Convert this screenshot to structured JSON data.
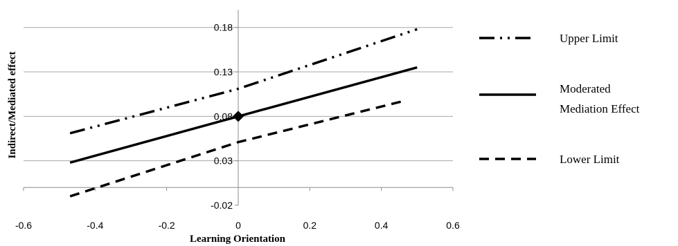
{
  "chart_data": {
    "type": "line",
    "xlabel": "Learning Orientation",
    "ylabel": "Indirect/Mediated effect",
    "xlim": [
      -0.6,
      0.6
    ],
    "ylim": [
      -0.02,
      0.2
    ],
    "x_ticks": [
      "-0.6",
      "-0.4",
      "-0.2",
      "0",
      "0.2",
      "0.4",
      "0.6"
    ],
    "y_ticks": [
      "-0.02",
      "0.03",
      "0.08",
      "0.13",
      "0.18"
    ],
    "grid": "horizontal",
    "legend_position": "right",
    "series": [
      {
        "name": "Upper Limit",
        "style": "dash-dot-dot",
        "x": [
          -0.47,
          0.0,
          0.5
        ],
        "y": [
          0.061,
          0.111,
          0.178
        ]
      },
      {
        "name": "Moderated Mediation Effect",
        "name_lines": [
          "Moderated",
          "Mediation Effect"
        ],
        "style": "solid",
        "x": [
          -0.47,
          0.0,
          0.5
        ],
        "y": [
          0.028,
          0.08,
          0.135
        ]
      },
      {
        "name": "Lower Limit",
        "style": "dashed",
        "x": [
          -0.47,
          0.0,
          0.47
        ],
        "y": [
          -0.01,
          0.051,
          0.098
        ]
      }
    ],
    "marker": {
      "x": 0.0,
      "y": 0.08,
      "shape": "diamond"
    }
  }
}
